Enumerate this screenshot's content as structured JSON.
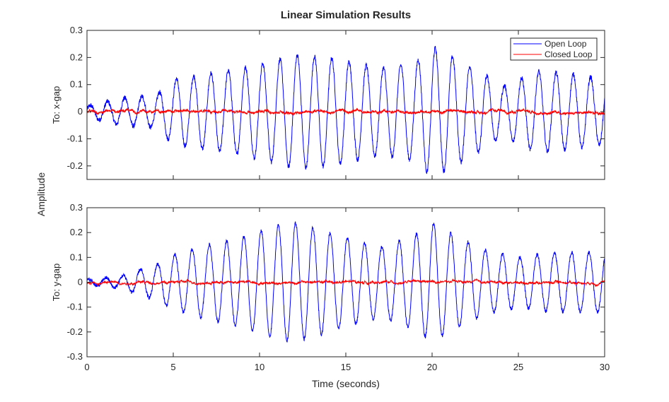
{
  "chart_data": {
    "type": "line",
    "title": "Linear Simulation Results",
    "xlabel": "Time (seconds)",
    "ylabel": "Amplitude",
    "xlim": [
      0,
      30
    ],
    "xticks": [
      0,
      5,
      10,
      15,
      20,
      25,
      30
    ],
    "legend": {
      "placement": "top-right",
      "entries": [
        {
          "name": "Open Loop",
          "color": "#0000ff"
        },
        {
          "name": "Closed Loop",
          "color": "#ff0000"
        }
      ]
    },
    "panels": [
      {
        "label": "To: x-gap",
        "ylim": [
          -0.25,
          0.3
        ],
        "yticks": [
          -0.2,
          -0.1,
          0,
          0.1,
          0.2,
          0.3
        ],
        "yticklabels": [
          "-0.2",
          "-0.1",
          "0",
          "0.1",
          "0.2",
          "0.3"
        ],
        "series": [
          {
            "name": "Open Loop",
            "color": "#0000ff",
            "freq_hz": 1.0,
            "phase": 0.4,
            "envelope_t": [
              0,
              2,
              4,
              5,
              7,
              9,
              11,
              12,
              14,
              17,
              19,
              20,
              21,
              23,
              24,
              26,
              28,
              30
            ],
            "envelope_amp": [
              0.02,
              0.05,
              0.06,
              0.12,
              0.14,
              0.16,
              0.19,
              0.21,
              0.2,
              0.16,
              0.18,
              0.24,
              0.21,
              0.14,
              0.09,
              0.15,
              0.14,
              0.12
            ],
            "noise": 0.012
          },
          {
            "name": "Closed Loop",
            "color": "#ff0000",
            "envelope_t": [
              0,
              30
            ],
            "envelope_amp": [
              0.012,
              0.012
            ],
            "noise": 0.007
          }
        ]
      },
      {
        "label": "To: y-gap",
        "ylim": [
          -0.3,
          0.3
        ],
        "yticks": [
          -0.3,
          -0.2,
          -0.1,
          0,
          0.1,
          0.2,
          0.3
        ],
        "yticklabels": [
          "-0.3",
          "-0.2",
          "-0.1",
          "0",
          "0.1",
          "0.2",
          "0.3"
        ],
        "series": [
          {
            "name": "Open Loop",
            "color": "#0000ff",
            "freq_hz": 1.0,
            "phase": 1.0,
            "envelope_t": [
              0,
              2,
              3,
              4,
              5,
              7,
              9,
              11,
              12,
              13,
              15,
              17,
              19,
              20,
              21,
              23,
              25,
              27,
              30
            ],
            "envelope_amp": [
              0.01,
              0.025,
              0.05,
              0.07,
              0.11,
              0.15,
              0.18,
              0.23,
              0.24,
              0.22,
              0.18,
              0.14,
              0.19,
              0.24,
              0.2,
              0.13,
              0.1,
              0.12,
              0.12
            ],
            "noise": 0.01
          },
          {
            "name": "Closed Loop",
            "color": "#ff0000",
            "envelope_t": [
              0,
              30
            ],
            "envelope_amp": [
              0.012,
              0.012
            ],
            "noise": 0.006
          }
        ]
      }
    ]
  }
}
